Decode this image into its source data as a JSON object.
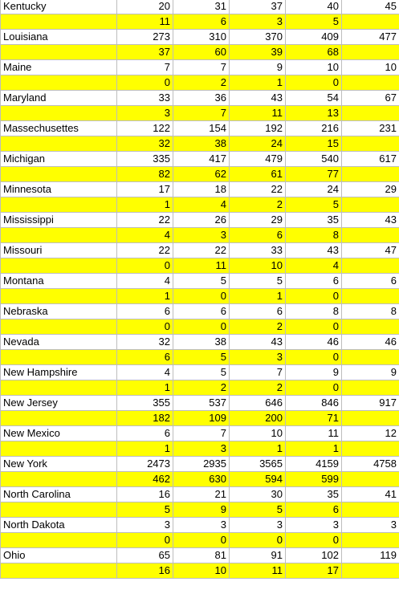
{
  "rows": [
    {
      "state": "Kentucky",
      "values": [
        "20",
        "31",
        "37",
        "40",
        "45"
      ],
      "deltas": [
        "11",
        "6",
        "3",
        "5",
        ""
      ]
    },
    {
      "state": "Louisiana",
      "values": [
        "273",
        "310",
        "370",
        "409",
        "477"
      ],
      "deltas": [
        "37",
        "60",
        "39",
        "68",
        ""
      ]
    },
    {
      "state": "Maine",
      "values": [
        "7",
        "7",
        "9",
        "10",
        "10"
      ],
      "deltas": [
        "0",
        "2",
        "1",
        "0",
        ""
      ]
    },
    {
      "state": "Maryland",
      "values": [
        "33",
        "36",
        "43",
        "54",
        "67"
      ],
      "deltas": [
        "3",
        "7",
        "11",
        "13",
        ""
      ]
    },
    {
      "state": "Massechusettes",
      "values": [
        "122",
        "154",
        "192",
        "216",
        "231"
      ],
      "deltas": [
        "32",
        "38",
        "24",
        "15",
        ""
      ]
    },
    {
      "state": "Michigan",
      "values": [
        "335",
        "417",
        "479",
        "540",
        "617"
      ],
      "deltas": [
        "82",
        "62",
        "61",
        "77",
        ""
      ]
    },
    {
      "state": "Minnesota",
      "values": [
        "17",
        "18",
        "22",
        "24",
        "29"
      ],
      "deltas": [
        "1",
        "4",
        "2",
        "5",
        ""
      ]
    },
    {
      "state": "Mississippi",
      "values": [
        "22",
        "26",
        "29",
        "35",
        "43"
      ],
      "deltas": [
        "4",
        "3",
        "6",
        "8",
        ""
      ]
    },
    {
      "state": "Missouri",
      "values": [
        "22",
        "22",
        "33",
        "43",
        "47"
      ],
      "deltas": [
        "0",
        "11",
        "10",
        "4",
        ""
      ]
    },
    {
      "state": "Montana",
      "values": [
        "4",
        "5",
        "5",
        "6",
        "6"
      ],
      "deltas": [
        "1",
        "0",
        "1",
        "0",
        ""
      ]
    },
    {
      "state": "Nebraska",
      "values": [
        "6",
        "6",
        "6",
        "8",
        "8"
      ],
      "deltas": [
        "0",
        "0",
        "2",
        "0",
        ""
      ]
    },
    {
      "state": "Nevada",
      "values": [
        "32",
        "38",
        "43",
        "46",
        "46"
      ],
      "deltas": [
        "6",
        "5",
        "3",
        "0",
        ""
      ]
    },
    {
      "state": "New Hampshire",
      "values": [
        "4",
        "5",
        "7",
        "9",
        "9"
      ],
      "deltas": [
        "1",
        "2",
        "2",
        "0",
        ""
      ]
    },
    {
      "state": "New Jersey",
      "values": [
        "355",
        "537",
        "646",
        "846",
        "917"
      ],
      "deltas": [
        "182",
        "109",
        "200",
        "71",
        ""
      ]
    },
    {
      "state": "New Mexico",
      "values": [
        "6",
        "7",
        "10",
        "11",
        "12"
      ],
      "deltas": [
        "1",
        "3",
        "1",
        "1",
        ""
      ]
    },
    {
      "state": "New York",
      "values": [
        "2473",
        "2935",
        "3565",
        "4159",
        "4758"
      ],
      "deltas": [
        "462",
        "630",
        "594",
        "599",
        ""
      ]
    },
    {
      "state": "North Carolina",
      "values": [
        "16",
        "21",
        "30",
        "35",
        "41"
      ],
      "deltas": [
        "5",
        "9",
        "5",
        "6",
        ""
      ]
    },
    {
      "state": "North Dakota",
      "values": [
        "3",
        "3",
        "3",
        "3",
        "3"
      ],
      "deltas": [
        "0",
        "0",
        "0",
        "0",
        ""
      ]
    },
    {
      "state": "Ohio",
      "values": [
        "65",
        "81",
        "91",
        "102",
        "119"
      ],
      "deltas": [
        "16",
        "10",
        "11",
        "17",
        ""
      ]
    }
  ],
  "colors": {
    "highlight": "#ffff00",
    "grid": "#bdbdbd"
  }
}
